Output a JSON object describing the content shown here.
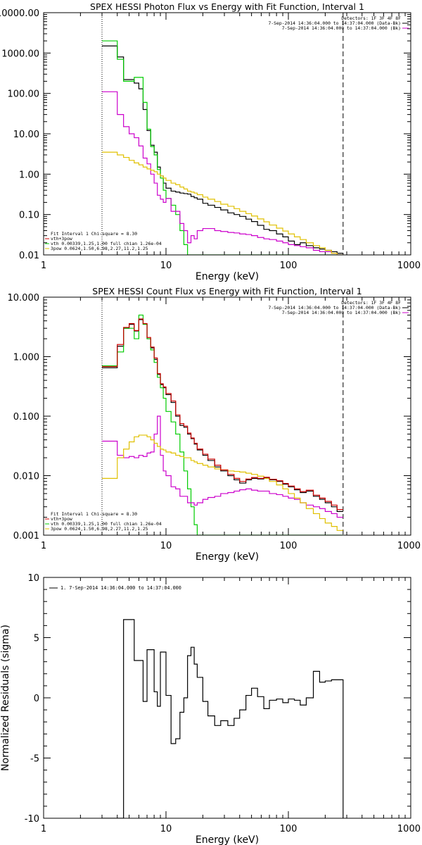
{
  "chart_data": [
    {
      "type": "line",
      "title": "SPEX HESSI Photon Flux vs Energy with Fit Function, Interval 1",
      "xlabel": "Energy (keV)",
      "ylabel": "",
      "xscale": "log",
      "yscale": "log",
      "xlim": [
        1,
        1000
      ],
      "ylim": [
        0.01,
        10000
      ],
      "xticks": [
        1,
        10,
        100,
        1000
      ],
      "xtick_labels": [
        "1",
        "10",
        "100",
        "1000"
      ],
      "yticks": [
        0.01,
        0.1,
        1,
        10,
        100,
        1000,
        10000
      ],
      "ytick_labels": [
        "0.01",
        "0.10",
        "1.00",
        "10.00",
        "100.00",
        "1000.00",
        "10000.00"
      ],
      "vlines": [
        {
          "x": 3,
          "style": "dotted"
        },
        {
          "x": 280,
          "style": "dashed"
        }
      ],
      "legend_top": {
        "placement": "top-right",
        "lines": [
          {
            "text": "Detectors: 1F 3F 4F 8F",
            "color": "#000000"
          },
          {
            "text": "7-Sep-2014 14:36:04.000 to 14:37:04.000 (Data-Bk)",
            "color": "#000000"
          },
          {
            "text": "7-Sep-2014 14:36:04.000 to 14:37:04.000 (Bk)",
            "color": "#cc00cc"
          }
        ]
      },
      "legend_fit": {
        "placement": "bottom-left",
        "lines": [
          {
            "text": "Fit Interval 1   Chi-square = 8.30",
            "color": "#000000"
          },
          {
            "text": "vth+3pow",
            "color": "#cc0000"
          },
          {
            "text": "vth 0.00339,1.25,1.00  full chian 1.26e-04",
            "color": "#00cc00"
          },
          {
            "text": "3pow 0.0624,1.50,6.98,2.27,11.2,1.25",
            "color": "#e0c000"
          }
        ]
      },
      "edges": [
        3,
        3.5,
        4.0,
        4.5,
        5.0,
        5.5,
        6.0,
        6.5,
        7.0,
        7.5,
        8.0,
        8.5,
        9.0,
        9.5,
        10.0,
        11.0,
        12.0,
        13.0,
        14.0,
        15.0,
        16.0,
        17.0,
        18.0,
        20.0,
        22.0,
        25.0,
        28.0,
        32.0,
        36.0,
        40.0,
        45.0,
        50.0,
        56.0,
        63.0,
        70.0,
        80.0,
        90.0,
        100.0,
        112.0,
        125.0,
        140.0,
        160.0,
        180.0,
        200.0,
        225.0,
        250.0,
        280.0
      ],
      "series": [
        {
          "color": "#000000",
          "values": [
            1500,
            1500,
            800,
            220,
            220,
            180,
            130,
            40,
            12,
            5.2,
            3.5,
            1.5,
            0.9,
            0.6,
            0.45,
            0.38,
            0.36,
            0.34,
            0.33,
            0.32,
            0.28,
            0.26,
            0.24,
            0.19,
            0.17,
            0.15,
            0.13,
            0.11,
            0.1,
            0.09,
            0.077,
            0.067,
            0.054,
            0.043,
            0.04,
            0.033,
            0.028,
            0.022,
            0.018,
            0.02,
            0.017,
            0.015,
            0.014,
            0.013,
            0.012,
            0.011
          ]
        },
        {
          "color": "#00cc00",
          "values": [
            2000,
            2000,
            700,
            200,
            200,
            250,
            250,
            60,
            13,
            4.8,
            3.0,
            1.3,
            0.8,
            0.4,
            0.25,
            0.17,
            0.1,
            0.04,
            0.018,
            0.01,
            0.01,
            0.01,
            0.01,
            0.01,
            0.01,
            0.01,
            0.01,
            0.01,
            0.01,
            0.01,
            0.01,
            0.01,
            0.01,
            0.01,
            0.01,
            0.01,
            0.01,
            0.01,
            0.01,
            0.01,
            0.01,
            0.01,
            0.01,
            0.01,
            0.01,
            0.01
          ]
        },
        {
          "color": "#cc00cc",
          "values": [
            110,
            110,
            30,
            15,
            10,
            8,
            5,
            2.5,
            1.8,
            1.0,
            0.6,
            0.3,
            0.24,
            0.2,
            0.25,
            0.12,
            0.12,
            0.06,
            0.04,
            0.02,
            0.03,
            0.025,
            0.04,
            0.045,
            0.045,
            0.04,
            0.038,
            0.036,
            0.035,
            0.033,
            0.032,
            0.03,
            0.027,
            0.025,
            0.024,
            0.022,
            0.02,
            0.018,
            0.017,
            0.016,
            0.015,
            0.013,
            0.012,
            0.012,
            0.011,
            0.01
          ]
        },
        {
          "color": "#e0c000",
          "values": [
            3.5,
            3.5,
            3.0,
            2.6,
            2.2,
            1.9,
            1.7,
            1.5,
            1.35,
            1.25,
            1.15,
            1.0,
            0.9,
            0.8,
            0.7,
            0.6,
            0.55,
            0.48,
            0.43,
            0.38,
            0.36,
            0.34,
            0.31,
            0.27,
            0.24,
            0.21,
            0.18,
            0.16,
            0.14,
            0.12,
            0.105,
            0.092,
            0.078,
            0.066,
            0.055,
            0.046,
            0.039,
            0.033,
            0.028,
            0.024,
            0.02,
            0.017,
            0.015,
            0.013,
            0.011,
            0.01
          ]
        }
      ]
    },
    {
      "type": "line",
      "title": "SPEX HESSI Count Flux vs Energy with Fit Function, Interval 1",
      "xlabel": "Energy (keV)",
      "ylabel": "",
      "xscale": "log",
      "yscale": "log",
      "xlim": [
        1,
        1000
      ],
      "ylim": [
        0.001,
        10
      ],
      "xticks": [
        1,
        10,
        100,
        1000
      ],
      "xtick_labels": [
        "1",
        "10",
        "100",
        "1000"
      ],
      "yticks": [
        0.001,
        0.01,
        0.1,
        1,
        10
      ],
      "ytick_labels": [
        "0.001",
        "0.010",
        "0.100",
        "1.000",
        "10.000"
      ],
      "vlines": [
        {
          "x": 3,
          "style": "dotted"
        },
        {
          "x": 280,
          "style": "dashed"
        }
      ],
      "legend_top": {
        "placement": "top-right",
        "lines": [
          {
            "text": "Detectors: 1F 3F 4F 8F",
            "color": "#000000"
          },
          {
            "text": "7-Sep-2014 14:36:04.000 to 14:37:04.000 (Data-Bk)",
            "color": "#000000"
          },
          {
            "text": "7-Sep-2014 14:36:04.000 to 14:37:04.000 (Bk)",
            "color": "#cc00cc"
          }
        ]
      },
      "legend_fit": {
        "placement": "bottom-left",
        "lines": [
          {
            "text": "Fit Interval 1   Chi-square = 8.30",
            "color": "#000000"
          },
          {
            "text": "vth+3pow",
            "color": "#cc0000"
          },
          {
            "text": "vth 0.00339,1.25,1.00  full chian 1.26e-04",
            "color": "#00cc00"
          },
          {
            "text": "3pow 0.0624,1.50,6.98,2.27,11.2,1.25",
            "color": "#e0c000"
          }
        ]
      },
      "edges": [
        3,
        3.5,
        4.0,
        4.5,
        5.0,
        5.5,
        6.0,
        6.5,
        7.0,
        7.5,
        8.0,
        8.5,
        9.0,
        9.5,
        10.0,
        11.0,
        12.0,
        13.0,
        14.0,
        15.0,
        16.0,
        17.0,
        18.0,
        20.0,
        22.0,
        25.0,
        28.0,
        32.0,
        36.0,
        40.0,
        45.0,
        50.0,
        56.0,
        63.0,
        70.0,
        80.0,
        90.0,
        100.0,
        112.0,
        125.0,
        140.0,
        160.0,
        180.0,
        200.0,
        225.0,
        250.0,
        280.0
      ],
      "series": [
        {
          "color": "#000000",
          "values": [
            0.65,
            0.65,
            1.5,
            3.0,
            3.5,
            2.7,
            4.2,
            3.5,
            2.0,
            1.4,
            0.9,
            0.5,
            0.34,
            0.3,
            0.23,
            0.17,
            0.1,
            0.07,
            0.065,
            0.05,
            0.042,
            0.034,
            0.027,
            0.022,
            0.018,
            0.014,
            0.012,
            0.01,
            0.0085,
            0.0075,
            0.0085,
            0.009,
            0.0088,
            0.0092,
            0.0085,
            0.008,
            0.0072,
            0.0065,
            0.0058,
            0.0052,
            0.0055,
            0.0045,
            0.004,
            0.0035,
            0.003,
            0.0025
          ]
        },
        {
          "color": "#00cc00",
          "values": [
            0.7,
            0.7,
            1.2,
            3.0,
            3.0,
            2.0,
            5.0,
            3.5,
            2.0,
            1.3,
            0.8,
            0.45,
            0.3,
            0.2,
            0.12,
            0.08,
            0.05,
            0.025,
            0.012,
            0.006,
            0.003,
            0.0015,
            0.001,
            0.001,
            0.001,
            0.001,
            0.001,
            0.001,
            0.001,
            0.001,
            0.001,
            0.001,
            0.001,
            0.001,
            0.001,
            0.001,
            0.001,
            0.001,
            0.001,
            0.001,
            0.001,
            0.001,
            0.001,
            0.001,
            0.001,
            0.001
          ]
        },
        {
          "color": "#cc00cc",
          "values": [
            0.038,
            0.038,
            0.022,
            0.02,
            0.021,
            0.02,
            0.022,
            0.021,
            0.024,
            0.025,
            0.05,
            0.1,
            0.022,
            0.012,
            0.01,
            0.0065,
            0.006,
            0.0045,
            0.0045,
            0.0035,
            0.0035,
            0.0032,
            0.0035,
            0.004,
            0.0043,
            0.0045,
            0.005,
            0.0052,
            0.0055,
            0.0058,
            0.006,
            0.0057,
            0.0055,
            0.0055,
            0.005,
            0.0048,
            0.0045,
            0.0042,
            0.004,
            0.0035,
            0.0032,
            0.003,
            0.0028,
            0.0025,
            0.0023,
            0.002
          ]
        },
        {
          "color": "#e0c000",
          "values": [
            0.009,
            0.009,
            0.02,
            0.028,
            0.037,
            0.045,
            0.048,
            0.048,
            0.045,
            0.04,
            0.035,
            0.031,
            0.028,
            0.027,
            0.025,
            0.024,
            0.022,
            0.021,
            0.02,
            0.02,
            0.018,
            0.017,
            0.016,
            0.015,
            0.014,
            0.013,
            0.0125,
            0.012,
            0.0118,
            0.0115,
            0.011,
            0.0105,
            0.0098,
            0.009,
            0.008,
            0.007,
            0.006,
            0.005,
            0.0042,
            0.0035,
            0.0028,
            0.0023,
            0.0019,
            0.0016,
            0.0014,
            0.0012
          ]
        },
        {
          "color": "#cc0000",
          "values": [
            0.68,
            0.68,
            1.6,
            3.1,
            3.6,
            2.75,
            4.3,
            3.6,
            2.1,
            1.45,
            0.95,
            0.52,
            0.35,
            0.31,
            0.24,
            0.18,
            0.105,
            0.075,
            0.068,
            0.052,
            0.043,
            0.035,
            0.028,
            0.023,
            0.019,
            0.015,
            0.0125,
            0.0105,
            0.009,
            0.008,
            0.0088,
            0.0093,
            0.009,
            0.0094,
            0.0087,
            0.0082,
            0.0074,
            0.0067,
            0.006,
            0.0054,
            0.0057,
            0.0047,
            0.0042,
            0.0037,
            0.0032,
            0.0027
          ]
        }
      ]
    },
    {
      "type": "line",
      "title": "",
      "xlabel": "Energy (keV)",
      "ylabel": "Normalized Residuals (sigma)",
      "xscale": "log",
      "yscale": "linear",
      "xlim": [
        1,
        1000
      ],
      "ylim": [
        -10,
        10
      ],
      "xticks": [
        1,
        10,
        100,
        1000
      ],
      "xtick_labels": [
        "1",
        "10",
        "100",
        "1000"
      ],
      "yticks": [
        -10,
        -5,
        0,
        5,
        10
      ],
      "ytick_labels": [
        "-10",
        "-5",
        "0",
        "5",
        "10"
      ],
      "legend_top": {
        "placement": "top-left",
        "lines": [
          {
            "text": "1.  7-Sep-2014 14:36:04.000 to 14:37:04.000",
            "color": "#000000"
          }
        ]
      },
      "edges": [
        3,
        4.5,
        5.0,
        5.5,
        6.0,
        6.5,
        7.0,
        7.5,
        8.0,
        8.5,
        9.0,
        9.5,
        10.0,
        11.0,
        12.0,
        13.0,
        14.0,
        15.0,
        16.0,
        17.0,
        18.0,
        20.0,
        22.0,
        25.0,
        28.0,
        32.0,
        36.0,
        40.0,
        45.0,
        50.0,
        56.0,
        63.0,
        70.0,
        80.0,
        90.0,
        100.0,
        112.0,
        125.0,
        140.0,
        160.0,
        180.0,
        200.0,
        225.0,
        250.0,
        280.0
      ],
      "series": [
        {
          "color": "#000000",
          "values": [
            -10,
            6.5,
            6.5,
            3.1,
            3.1,
            -0.3,
            4.0,
            4.0,
            0.5,
            -0.7,
            3.8,
            3.8,
            0.2,
            -3.8,
            -3.4,
            -1.2,
            0.0,
            3.5,
            4.2,
            2.8,
            1.7,
            -0.3,
            -1.5,
            -2.3,
            -1.9,
            -2.3,
            -1.7,
            -1.0,
            0.2,
            0.8,
            0.1,
            -0.9,
            -0.2,
            -0.1,
            -0.4,
            -0.1,
            -0.2,
            -0.6,
            0.0,
            2.2,
            1.3,
            1.4,
            1.5,
            1.5
          ]
        }
      ]
    }
  ]
}
